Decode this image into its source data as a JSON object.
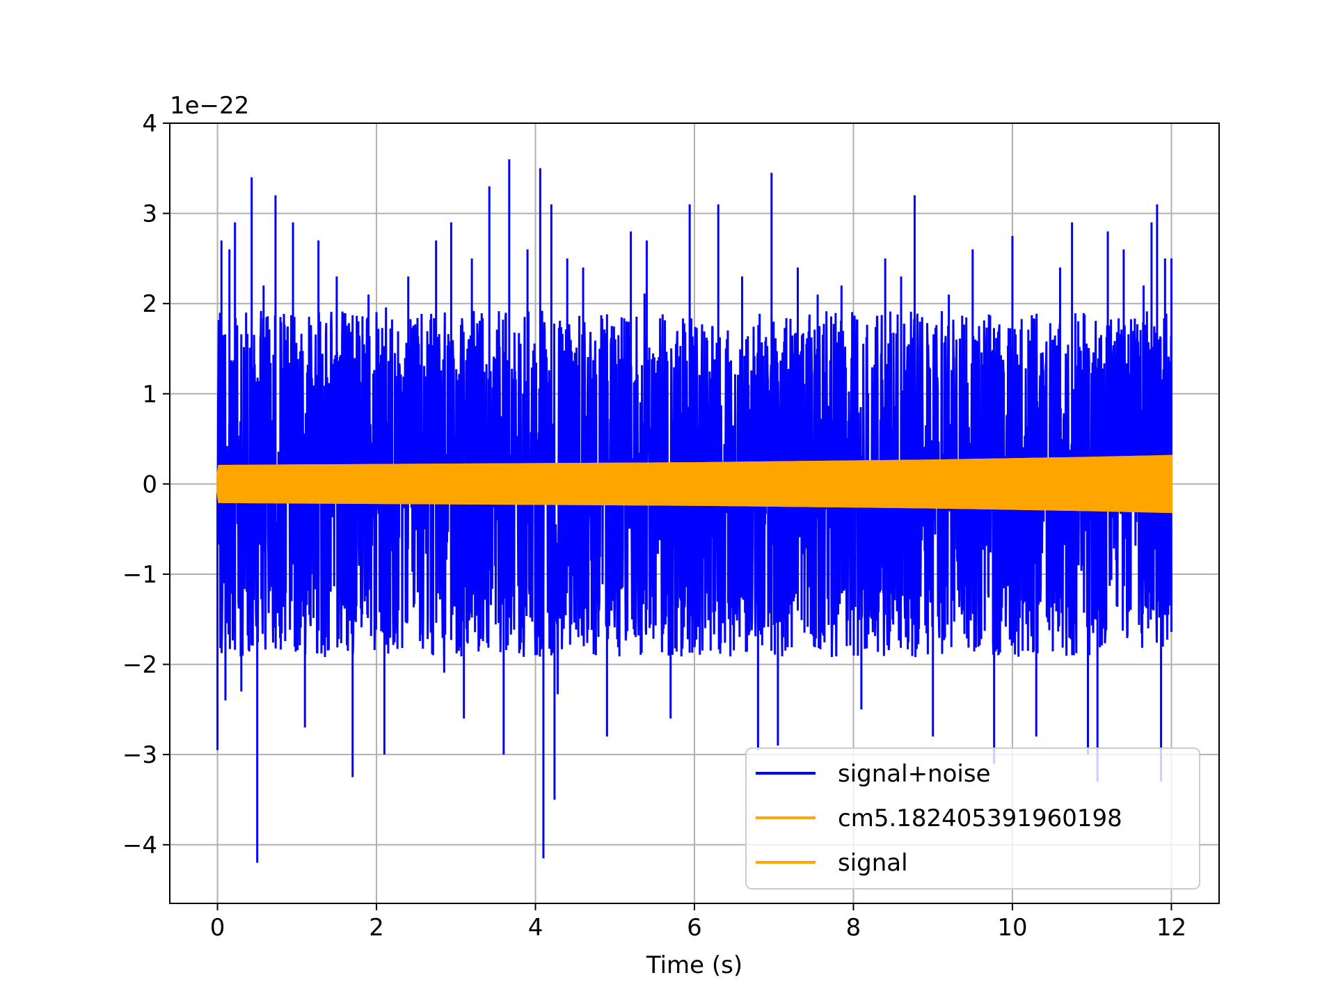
{
  "chart_data": {
    "type": "line",
    "title": "",
    "xlabel": "Time (s)",
    "ylabel": "",
    "y_offset_label": "1e−22",
    "xlim": [
      -0.6,
      12.6
    ],
    "ylim": [
      -4.65,
      4.0
    ],
    "x_ticks": [
      0,
      2,
      4,
      6,
      8,
      10,
      12
    ],
    "x_tick_labels": [
      "0",
      "2",
      "4",
      "6",
      "8",
      "10",
      "12"
    ],
    "y_ticks": [
      -4,
      -3,
      -2,
      -1,
      0,
      1,
      2,
      3,
      4
    ],
    "y_tick_labels": [
      "−4",
      "−3",
      "−2",
      "−1",
      "0",
      "1",
      "2",
      "3",
      "4"
    ],
    "grid": true,
    "legend_position": "lower-right",
    "series": [
      {
        "name": "signal+noise",
        "color": "#0000ff",
        "x_range": [
          0,
          12
        ],
        "typical_envelope": [
          -1.6,
          1.6
        ],
        "x": [
          0.0,
          0.05,
          0.1,
          0.15,
          0.22,
          0.3,
          0.36,
          0.43,
          0.5,
          0.58,
          0.73,
          0.95,
          1.1,
          1.27,
          1.5,
          1.7,
          1.9,
          2.1,
          2.4,
          2.75,
          2.94,
          3.1,
          3.2,
          3.42,
          3.6,
          3.67,
          3.9,
          4.06,
          4.1,
          4.2,
          4.24,
          4.4,
          4.6,
          4.9,
          5.2,
          5.4,
          5.7,
          5.94,
          6.3,
          6.6,
          6.8,
          6.97,
          7.05,
          7.3,
          7.55,
          7.85,
          8.1,
          8.4,
          8.6,
          8.77,
          9.0,
          9.2,
          9.5,
          9.77,
          10.0,
          10.3,
          10.6,
          10.75,
          10.95,
          11.07,
          11.2,
          11.4,
          11.65,
          11.75,
          11.82,
          11.87,
          11.92,
          12.0
        ],
        "y": [
          -2.95,
          2.7,
          -2.4,
          2.6,
          2.9,
          -2.3,
          1.9,
          3.4,
          -4.2,
          2.2,
          3.2,
          2.9,
          -2.7,
          2.7,
          2.3,
          -3.25,
          2.1,
          -3.0,
          2.3,
          2.7,
          2.9,
          -2.6,
          2.5,
          3.3,
          -3.0,
          3.6,
          2.6,
          3.5,
          -4.15,
          3.1,
          -3.5,
          2.5,
          2.4,
          -2.8,
          2.8,
          2.7,
          -2.6,
          3.1,
          3.1,
          2.3,
          -2.95,
          3.45,
          -2.9,
          2.4,
          2.1,
          2.2,
          -2.5,
          2.5,
          2.3,
          3.2,
          -2.8,
          2.1,
          2.6,
          -3.1,
          2.75,
          -2.8,
          2.4,
          2.9,
          -3.0,
          -3.3,
          2.8,
          2.6,
          2.2,
          2.9,
          3.1,
          -3.3,
          2.5,
          2.5
        ]
      },
      {
        "name": "cm5.182405391960198",
        "color": "#ffa500",
        "x": [
          0.0,
          0.02,
          1.0,
          2.0,
          3.0,
          4.0,
          5.0,
          6.0,
          7.0,
          8.0,
          9.0,
          10.0,
          11.0,
          12.0
        ],
        "envelope": [
          0.08,
          0.2,
          0.205,
          0.21,
          0.215,
          0.22,
          0.225,
          0.23,
          0.24,
          0.25,
          0.26,
          0.275,
          0.29,
          0.31
        ]
      },
      {
        "name": "signal",
        "color": "#ffa500",
        "x": [
          0.0,
          0.02,
          1.0,
          2.0,
          3.0,
          4.0,
          5.0,
          6.0,
          7.0,
          8.0,
          9.0,
          10.0,
          11.0,
          12.0
        ],
        "envelope": [
          0.08,
          0.2,
          0.205,
          0.21,
          0.215,
          0.22,
          0.225,
          0.23,
          0.24,
          0.25,
          0.26,
          0.275,
          0.29,
          0.31
        ]
      }
    ]
  }
}
